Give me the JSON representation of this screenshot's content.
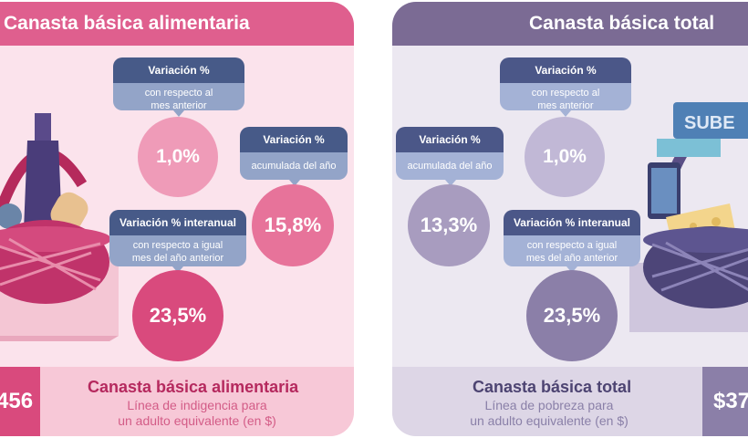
{
  "left": {
    "header": "Canasta básica alimentaria",
    "box_month": {
      "title": "Variación %",
      "subtitle_line1": "con respecto al",
      "subtitle_line2": "mes anterior",
      "value": "1,0%"
    },
    "box_year": {
      "title": "Variación %",
      "subtitle": "acumulada del año",
      "value": "15,8%"
    },
    "box_interanual": {
      "title": "Variación % interanual",
      "subtitle_line1": "con respecto a igual",
      "subtitle_line2": "mes del año anterior",
      "value": "23,5%"
    },
    "price": "456",
    "footer_title": "Canasta básica alimentaria",
    "footer_line1": "Línea de indigencia para",
    "footer_line2": "un adulto equivalente (en $)"
  },
  "right": {
    "header": "Canasta básica total",
    "box_month": {
      "title": "Variación %",
      "subtitle_line1": "con respecto al",
      "subtitle_line2": "mes anterior",
      "value": "1,0%"
    },
    "box_year": {
      "title": "Variación %",
      "subtitle": "acumulada del año",
      "value": "13,3%"
    },
    "box_interanual": {
      "title": "Variación % interanual",
      "subtitle_line1": "con respecto a igual",
      "subtitle_line2": "mes del año anterior",
      "value": "23,5%"
    },
    "price": "$37",
    "footer_title": "Canasta básica total",
    "footer_line1": "Línea de pobreza para",
    "footer_line2": "un adulto equivalente (en $)",
    "card_text": "SUBE"
  },
  "colors": {
    "pink_header": "#df5f8e",
    "purple_header": "#7b6b94",
    "navy_box": "#475a88"
  }
}
